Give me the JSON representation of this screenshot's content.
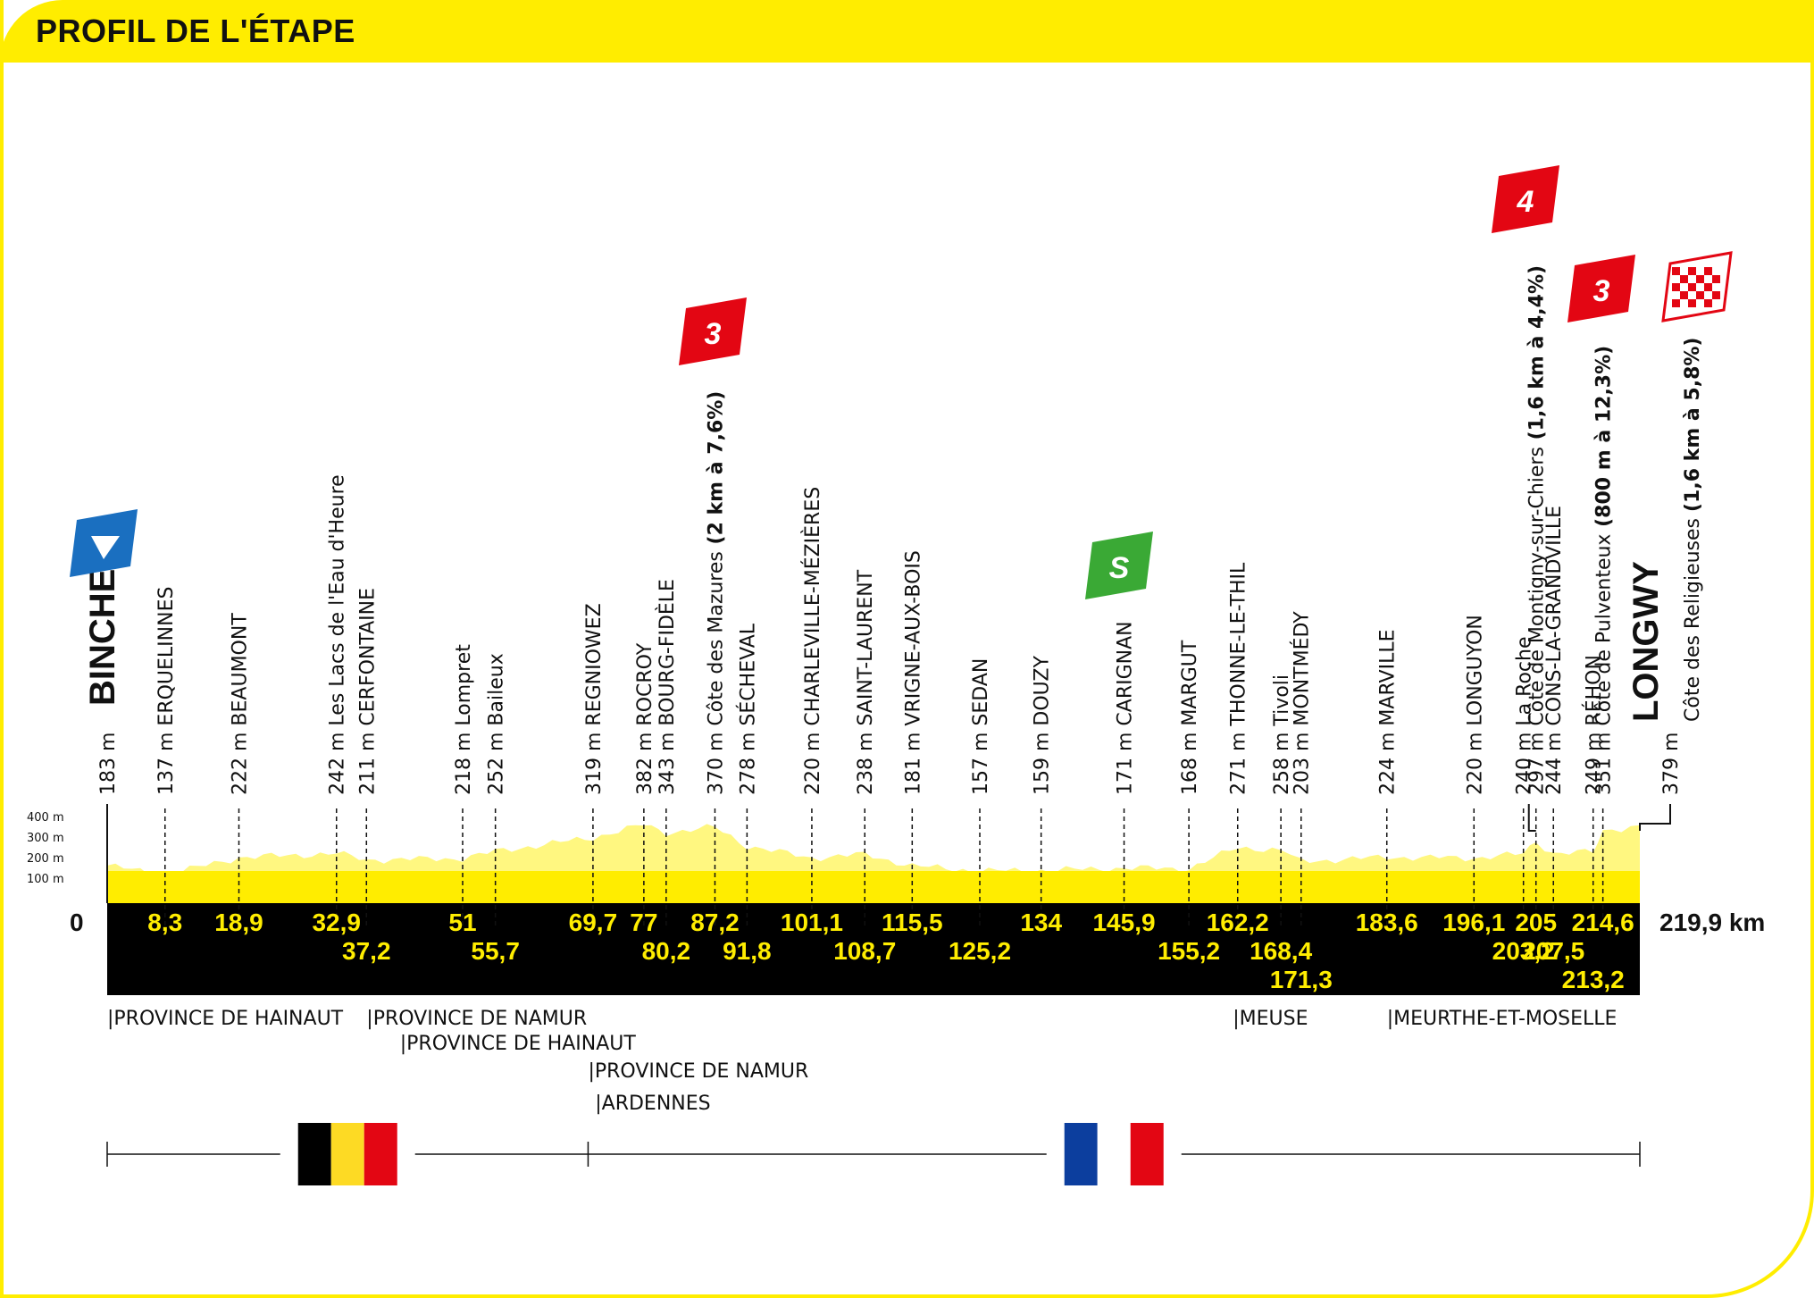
{
  "title": "PROFIL DE L'ÉTAPE",
  "start": {
    "name": "BINCHE",
    "altitude": "183 m",
    "km": "0"
  },
  "finish": {
    "name": "LONGWY",
    "altitude": "379 m",
    "km": "219,9 km",
    "climb": "Côte des Religieuses (1,6 km à 5,8%)"
  },
  "y_axis": [
    "400 m",
    "300 m",
    "200 m",
    "100 m"
  ],
  "points": [
    {
      "km": 8.3,
      "km_label": "8,3",
      "row": 1,
      "alt": "137 m",
      "name": "ERQUELINNES"
    },
    {
      "km": 18.9,
      "km_label": "18,9",
      "row": 1,
      "alt": "222 m",
      "name": "BEAUMONT"
    },
    {
      "km": 32.9,
      "km_label": "32,9",
      "row": 1,
      "alt": "242 m",
      "name": "Les Lacs de l'Eau d'Heure"
    },
    {
      "km": 37.2,
      "km_label": "37,2",
      "row": 2,
      "alt": "211 m",
      "name": "CERFONTAINE"
    },
    {
      "km": 51,
      "km_label": "51",
      "row": 1,
      "alt": "218 m",
      "name": "Lompret"
    },
    {
      "km": 55.7,
      "km_label": "55,7",
      "row": 2,
      "alt": "252 m",
      "name": "Baileux"
    },
    {
      "km": 69.7,
      "km_label": "69,7",
      "row": 1,
      "alt": "319 m",
      "name": "REGNIOWEZ"
    },
    {
      "km": 77,
      "km_label": "77",
      "row": 1,
      "alt": "382 m",
      "name": "ROCROY"
    },
    {
      "km": 80.2,
      "km_label": "80,2",
      "row": 2,
      "alt": "343 m",
      "name": "BOURG-FIDÈLE"
    },
    {
      "km": 87.2,
      "km_label": "87,2",
      "row": 1,
      "alt": "370 m",
      "name": "Côte des Mazures",
      "climb": "(2 km à 7,6%)"
    },
    {
      "km": 91.8,
      "km_label": "91,8",
      "row": 2,
      "alt": "278 m",
      "name": "SÉCHEVAL"
    },
    {
      "km": 101.1,
      "km_label": "101,1",
      "row": 1,
      "alt": "220 m",
      "name": "CHARLEVILLE-MÉZIÈRES"
    },
    {
      "km": 108.7,
      "km_label": "108,7",
      "row": 2,
      "alt": "238 m",
      "name": "SAINT-LAURENT"
    },
    {
      "km": 115.5,
      "km_label": "115,5",
      "row": 1,
      "alt": "181 m",
      "name": "VRIGNE-AUX-BOIS"
    },
    {
      "km": 125.2,
      "km_label": "125,2",
      "row": 2,
      "alt": "157 m",
      "name": "SEDAN"
    },
    {
      "km": 134,
      "km_label": "134",
      "row": 1,
      "alt": "159 m",
      "name": "DOUZY"
    },
    {
      "km": 145.9,
      "km_label": "145,9",
      "row": 1,
      "alt": "171 m",
      "name": "CARIGNAN"
    },
    {
      "km": 155.2,
      "km_label": "155,2",
      "row": 2,
      "alt": "168 m",
      "name": "MARGUT"
    },
    {
      "km": 162.2,
      "km_label": "162,2",
      "row": 1,
      "alt": "271 m",
      "name": "THONNE-LE-THIL"
    },
    {
      "km": 168.4,
      "km_label": "168,4",
      "row": 2,
      "alt": "258 m",
      "name": "Tivoli"
    },
    {
      "km": 171.3,
      "km_label": "171,3",
      "row": 3,
      "alt": "203 m",
      "name": "MONTMÉDY"
    },
    {
      "km": 183.6,
      "km_label": "183,6",
      "row": 1,
      "alt": "224 m",
      "name": "MARVILLE"
    },
    {
      "km": 196.1,
      "km_label": "196,1",
      "row": 1,
      "alt": "220 m",
      "name": "LONGUYON"
    },
    {
      "km": 203.2,
      "km_label": "203,2",
      "row": 2,
      "alt": "240 m",
      "name": "La Roche"
    },
    {
      "km": 205,
      "km_label": "205",
      "row": 1,
      "alt": "297 m",
      "name": "Côte de Montigny-sur-Chiers",
      "climb": "(1,6 km à 4,4%)"
    },
    {
      "km": 207.5,
      "km_label": "207,5",
      "row": 2,
      "alt": "244 m",
      "name": "CONS-LA-GRANDVILLE"
    },
    {
      "km": 213.2,
      "km_label": "213,2",
      "row": 3,
      "alt": "249 m",
      "name": "RÉHON"
    },
    {
      "km": 214.6,
      "km_label": "214,6",
      "row": 1,
      "alt": "351 m",
      "name": "Côte de Pulventeux",
      "climb": "(800 m à 12,3%)"
    }
  ],
  "badges": [
    {
      "type": "start",
      "color": "#1a6fc0",
      "km": 0
    },
    {
      "type": "climb",
      "category": "3",
      "color": "#e30613",
      "km": 87.2
    },
    {
      "type": "sprint",
      "text": "S",
      "color": "#3aa935",
      "km": 145.9
    },
    {
      "type": "climb",
      "category": "4",
      "color": "#e30613",
      "km": 205
    },
    {
      "type": "climb",
      "category": "3",
      "color": "#e30613",
      "km": 214.6
    },
    {
      "type": "finish",
      "color": "#e30613",
      "km": 219.9
    }
  ],
  "regions": [
    {
      "name": "PROVINCE DE HAINAUT",
      "km": 0,
      "line": 0
    },
    {
      "name": "PROVINCE DE NAMUR",
      "km": 37.2,
      "line": 0
    },
    {
      "name": "PROVINCE DE HAINAUT",
      "km": 42,
      "line": 1
    },
    {
      "name": "PROVINCE DE NAMUR",
      "km": 69,
      "line": 2
    },
    {
      "name": "ARDENNES",
      "km": 70,
      "line": 3
    },
    {
      "name": "MEUSE",
      "km": 161.5,
      "line": 0
    },
    {
      "name": "MEURTHE-ET-MOSELLE",
      "km": 183.6,
      "line": 0
    }
  ],
  "countries": [
    {
      "name": "Belgique",
      "from_km": 0,
      "to_km": 69,
      "flag": [
        "#000000",
        "#fdda24",
        "#e30613"
      ]
    },
    {
      "name": "France",
      "from_km": 69,
      "to_km": 219.9,
      "flag": [
        "#0c3e9e",
        "#ffffff",
        "#e30613"
      ]
    }
  ],
  "colors": {
    "accent": "#ffed00",
    "profile_fill": "#fff780",
    "base": "#000000"
  }
}
